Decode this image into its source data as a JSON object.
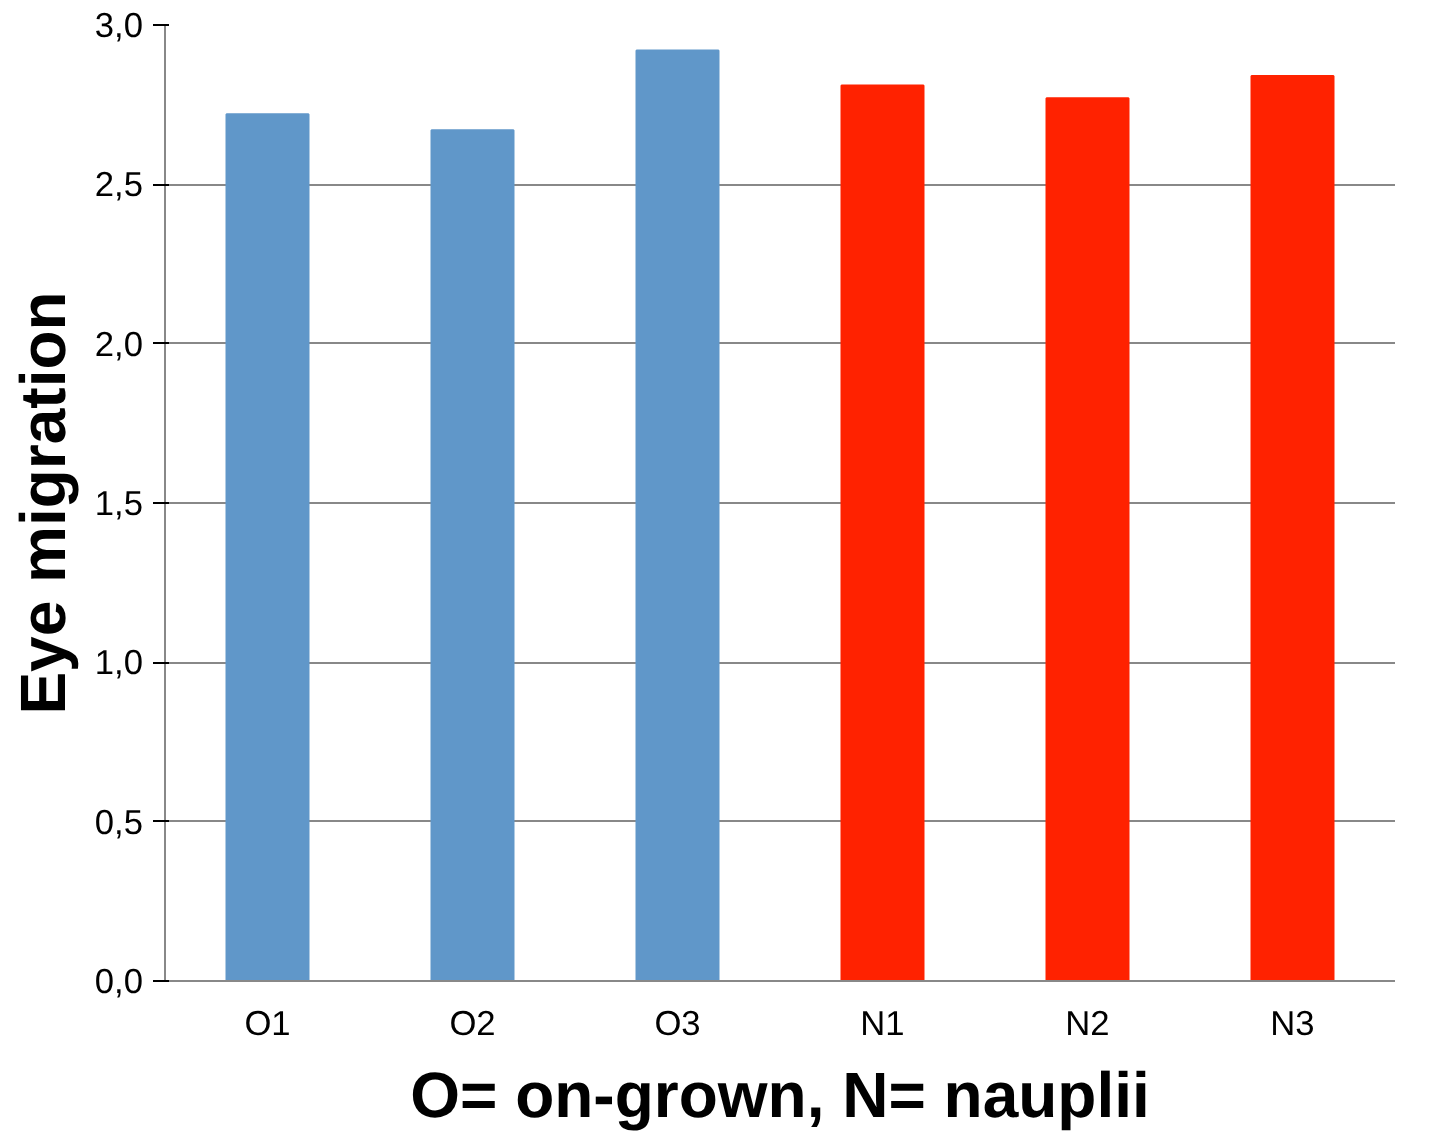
{
  "chart_data": {
    "type": "bar",
    "xlabel": "O= on-grown, N= nauplii",
    "ylabel": "Eye migration",
    "categories": [
      "O1",
      "O2",
      "O3",
      "N1",
      "N2",
      "N3"
    ],
    "values": [
      2.72,
      2.67,
      2.92,
      2.81,
      2.77,
      2.84
    ],
    "colors": [
      "#6097c9",
      "#6097c9",
      "#6097c9",
      "#ff2200",
      "#ff2200",
      "#ff2200"
    ],
    "ylim": [
      0,
      3
    ],
    "yticks": [
      {
        "value": 0,
        "label": "0,0"
      },
      {
        "value": 0.5,
        "label": "0,5"
      },
      {
        "value": 1,
        "label": "1,0"
      },
      {
        "value": 1.5,
        "label": "1,5"
      },
      {
        "value": 2,
        "label": "2,0"
      },
      {
        "value": 2.5,
        "label": "2,5"
      },
      {
        "value": 3,
        "label": "3,0"
      }
    ],
    "grid": "y"
  }
}
